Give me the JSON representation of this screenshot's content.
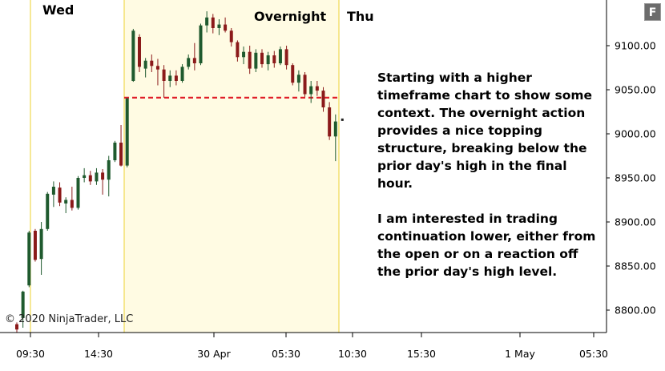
{
  "labels": {
    "wed": "Wed",
    "overnight": "Overnight",
    "thu": "Thu",
    "copyright": "© 2020 NinjaTrader, LLC",
    "badge": "F"
  },
  "annotation": {
    "para1": "Starting with a higher timeframe chart to show some context. The overnight action provides a nice topping structure, breaking below the prior day's high in the final hour.",
    "para2": "I am interested in trading continuation lower, either from the open or on a reaction off the prior day's high level."
  },
  "colors": {
    "up_candle": "#1f5a2e",
    "down_candle": "#8b1a1a",
    "session_shade": "#fffbe3",
    "session_line": "#f2dc5e",
    "level_line": "#e0202a",
    "axis": "#000000"
  },
  "chart_data": {
    "type": "candlestick",
    "y_axis": {
      "ticks": [
        9100,
        9050,
        9000,
        8950,
        8900,
        8850,
        8800
      ],
      "tick_labels": [
        "9100.00",
        "9050.00",
        "9000.00",
        "8950.00",
        "8900.00",
        "8850.00",
        "8800.00"
      ],
      "ylim": [
        8775,
        9140
      ]
    },
    "x_axis": {
      "tick_labels": [
        "09:30",
        "14:30",
        "30 Apr",
        "05:30",
        "10:30",
        "15:30",
        "1 May",
        "05:30"
      ]
    },
    "prior_day_high": 9041,
    "last_price_marker": 9016,
    "candles": [
      {
        "o": 8784,
        "h": 8786,
        "l": 8775,
        "c": 8778
      },
      {
        "o": 8791,
        "h": 8822,
        "l": 8780,
        "c": 8821
      },
      {
        "o": 8828,
        "h": 8890,
        "l": 8826,
        "c": 8888
      },
      {
        "o": 8890,
        "h": 8892,
        "l": 8855,
        "c": 8857
      },
      {
        "o": 8858,
        "h": 8900,
        "l": 8840,
        "c": 8892
      },
      {
        "o": 8892,
        "h": 8934,
        "l": 8890,
        "c": 8932
      },
      {
        "o": 8931,
        "h": 8946,
        "l": 8917,
        "c": 8940
      },
      {
        "o": 8939,
        "h": 8945,
        "l": 8918,
        "c": 8922
      },
      {
        "o": 8921,
        "h": 8928,
        "l": 8910,
        "c": 8925
      },
      {
        "o": 8925,
        "h": 8940,
        "l": 8913,
        "c": 8916
      },
      {
        "o": 8916,
        "h": 8952,
        "l": 8914,
        "c": 8950
      },
      {
        "o": 8950,
        "h": 8961,
        "l": 8945,
        "c": 8953
      },
      {
        "o": 8953,
        "h": 8958,
        "l": 8942,
        "c": 8946
      },
      {
        "o": 8946,
        "h": 8961,
        "l": 8942,
        "c": 8956
      },
      {
        "o": 8956,
        "h": 8960,
        "l": 8931,
        "c": 8948
      },
      {
        "o": 8948,
        "h": 8975,
        "l": 8929,
        "c": 8970
      },
      {
        "o": 8970,
        "h": 8992,
        "l": 8968,
        "c": 8990
      },
      {
        "o": 8990,
        "h": 9010,
        "l": 8963,
        "c": 8964
      },
      {
        "o": 8964,
        "h": 9041,
        "l": 8962,
        "c": 9040
      },
      {
        "o": 9060,
        "h": 9119,
        "l": 9059,
        "c": 9117
      },
      {
        "o": 9110,
        "h": 9113,
        "l": 9070,
        "c": 9076
      },
      {
        "o": 9074,
        "h": 9086,
        "l": 9064,
        "c": 9083
      },
      {
        "o": 9083,
        "h": 9090,
        "l": 9070,
        "c": 9077
      },
      {
        "o": 9077,
        "h": 9085,
        "l": 9055,
        "c": 9073
      },
      {
        "o": 9073,
        "h": 9078,
        "l": 9041,
        "c": 9060
      },
      {
        "o": 9060,
        "h": 9072,
        "l": 9053,
        "c": 9066
      },
      {
        "o": 9066,
        "h": 9072,
        "l": 9055,
        "c": 9060
      },
      {
        "o": 9060,
        "h": 9079,
        "l": 9058,
        "c": 9076
      },
      {
        "o": 9076,
        "h": 9090,
        "l": 9073,
        "c": 9086
      },
      {
        "o": 9086,
        "h": 9103,
        "l": 9072,
        "c": 9080
      },
      {
        "o": 9080,
        "h": 9125,
        "l": 9078,
        "c": 9123
      },
      {
        "o": 9123,
        "h": 9139,
        "l": 9115,
        "c": 9132
      },
      {
        "o": 9132,
        "h": 9136,
        "l": 9114,
        "c": 9120
      },
      {
        "o": 9120,
        "h": 9130,
        "l": 9112,
        "c": 9124
      },
      {
        "o": 9124,
        "h": 9132,
        "l": 9115,
        "c": 9117
      },
      {
        "o": 9117,
        "h": 9120,
        "l": 9099,
        "c": 9104
      },
      {
        "o": 9104,
        "h": 9106,
        "l": 9082,
        "c": 9087
      },
      {
        "o": 9087,
        "h": 9099,
        "l": 9079,
        "c": 9093
      },
      {
        "o": 9093,
        "h": 9100,
        "l": 9068,
        "c": 9074
      },
      {
        "o": 9074,
        "h": 9096,
        "l": 9070,
        "c": 9092
      },
      {
        "o": 9092,
        "h": 9096,
        "l": 9075,
        "c": 9079
      },
      {
        "o": 9079,
        "h": 9093,
        "l": 9072,
        "c": 9089
      },
      {
        "o": 9089,
        "h": 9094,
        "l": 9075,
        "c": 9080
      },
      {
        "o": 9080,
        "h": 9099,
        "l": 9078,
        "c": 9096
      },
      {
        "o": 9096,
        "h": 9100,
        "l": 9073,
        "c": 9078
      },
      {
        "o": 9078,
        "h": 9080,
        "l": 9055,
        "c": 9058
      },
      {
        "o": 9058,
        "h": 9072,
        "l": 9048,
        "c": 9067
      },
      {
        "o": 9067,
        "h": 9070,
        "l": 9042,
        "c": 9045
      },
      {
        "o": 9045,
        "h": 9060,
        "l": 9035,
        "c": 9054
      },
      {
        "o": 9054,
        "h": 9060,
        "l": 9043,
        "c": 9049
      },
      {
        "o": 9049,
        "h": 9053,
        "l": 9025,
        "c": 9030
      },
      {
        "o": 9030,
        "h": 9036,
        "l": 8993,
        "c": 8997
      },
      {
        "o": 8997,
        "h": 9022,
        "l": 8969,
        "c": 9014
      }
    ]
  }
}
